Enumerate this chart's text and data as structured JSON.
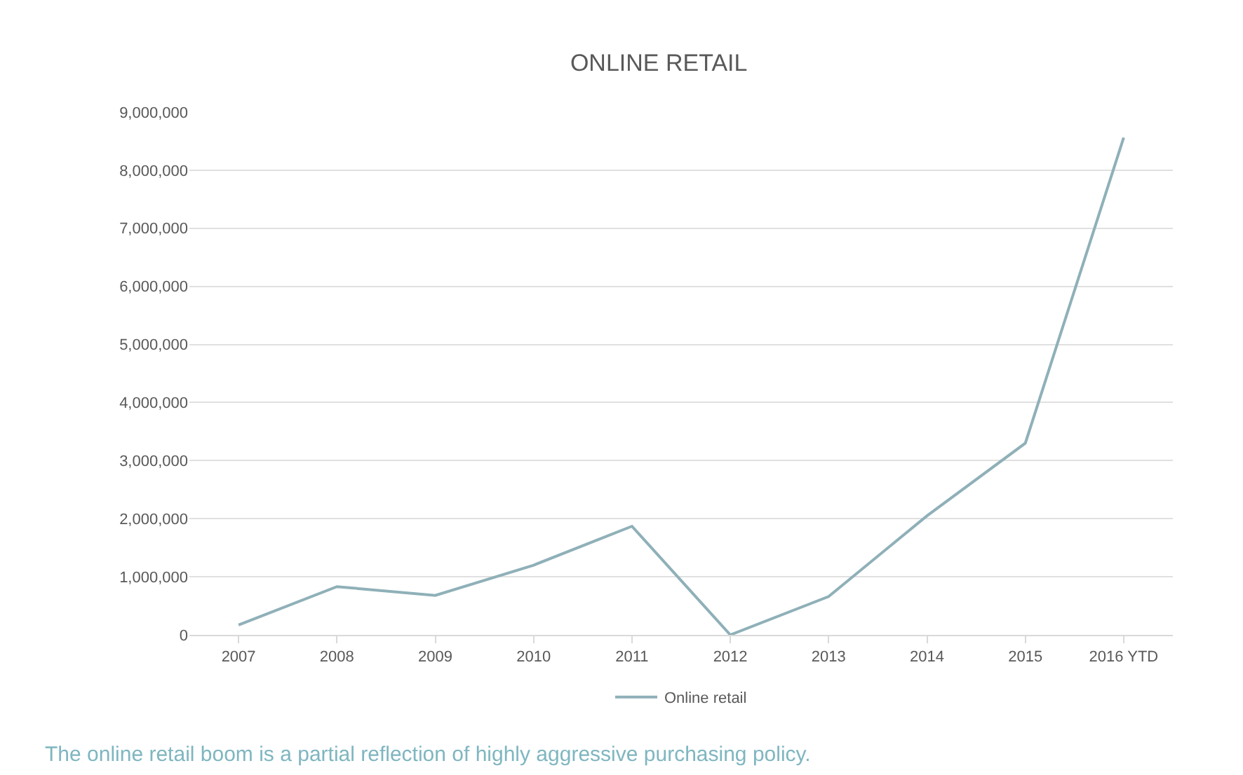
{
  "chart_data": {
    "type": "line",
    "title": "ONLINE RETAIL",
    "categories": [
      "2007",
      "2008",
      "2009",
      "2010",
      "2011",
      "2012",
      "2013",
      "2014",
      "2015",
      "2016 YTD"
    ],
    "series": [
      {
        "name": "Online retail",
        "color": "#8fb0b8",
        "values": [
          170000,
          830000,
          680000,
          1200000,
          1870000,
          0,
          660000,
          2050000,
          3300000,
          8560000
        ]
      }
    ],
    "ylim": [
      0,
      9000000
    ],
    "yticks": [
      {
        "value": 0,
        "label": "0"
      },
      {
        "value": 1000000,
        "label": "1,000,000"
      },
      {
        "value": 2000000,
        "label": "2,000,000"
      },
      {
        "value": 3000000,
        "label": "3,000,000"
      },
      {
        "value": 4000000,
        "label": "4,000,000"
      },
      {
        "value": 5000000,
        "label": "5,000,000"
      },
      {
        "value": 6000000,
        "label": "6,000,000"
      },
      {
        "value": 7000000,
        "label": "7,000,000"
      },
      {
        "value": 8000000,
        "label": "8,000,000"
      },
      {
        "value": 9000000,
        "label": "9,000,000"
      }
    ],
    "grid": "y",
    "legend": "bottom",
    "marker": "none",
    "line_style": "solid",
    "annotations": [
      "The online retail boom is a partial reflection of highly aggressive purchasing policy."
    ]
  }
}
